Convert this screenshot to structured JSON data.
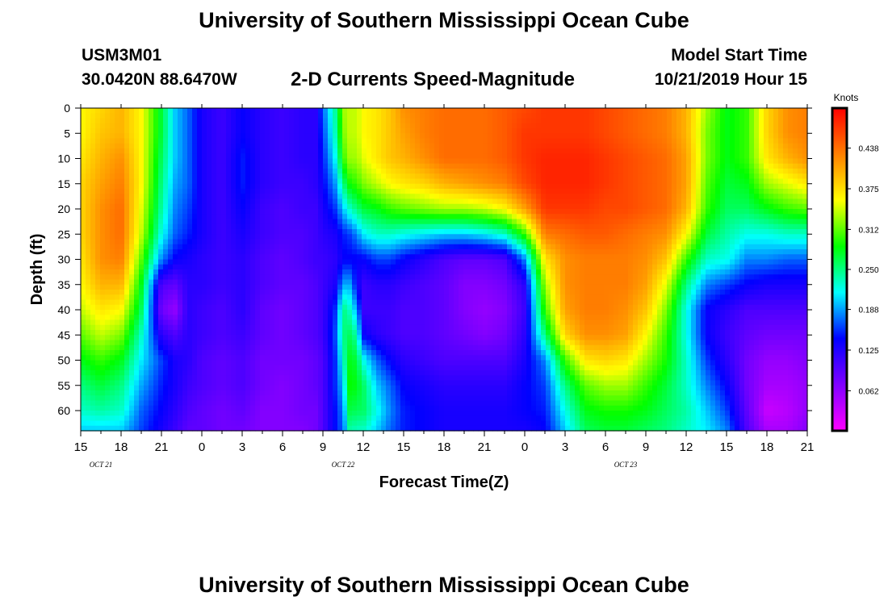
{
  "header": {
    "title": "University of Southern Mississippi Ocean Cube",
    "station": "USM3M01",
    "coords": "30.0420N 88.6470W",
    "product": "2-D Currents Speed-Magnitude",
    "model_start_label": "Model Start Time",
    "model_start_value": "10/21/2019 Hour 15"
  },
  "footer": {
    "title": "University of Southern Mississippi Ocean Cube"
  },
  "chart_data": {
    "type": "heatmap",
    "title": "2-D Currents Speed-Magnitude",
    "xlabel": "Forecast Time(Z)",
    "ylabel": "Depth (ft)",
    "x_tick_labels": [
      "15",
      "18",
      "21",
      "0",
      "3",
      "6",
      "9",
      "12",
      "15",
      "18",
      "21",
      "0",
      "3",
      "6",
      "9",
      "12",
      "15",
      "18",
      "21"
    ],
    "x_date_labels": [
      {
        "text": "OCT 21",
        "tick_index": 1
      },
      {
        "text": "OCT 22",
        "tick_index": 7
      },
      {
        "text": "OCT 23",
        "tick_index": 14
      }
    ],
    "y_ticks": [
      0,
      5,
      10,
      15,
      20,
      25,
      30,
      35,
      40,
      45,
      50,
      55,
      60
    ],
    "ylim": [
      0,
      64
    ],
    "y_inverted": true,
    "colorbar": {
      "label": "Knots",
      "ticks": [
        "0.062",
        "0.125",
        "0.188",
        "0.250",
        "0.312",
        "0.375",
        "0.438"
      ],
      "range": [
        0.0,
        0.5
      ],
      "colors": [
        "#ff00ff",
        "#8000ff",
        "#0000ff",
        "#00ffff",
        "#00ff00",
        "#ffff00",
        "#ff8000",
        "#ff0000"
      ]
    },
    "x_hours": [
      0,
      3,
      6,
      9,
      12,
      15,
      18,
      21,
      24,
      27,
      30,
      33,
      36,
      39,
      42,
      45,
      48,
      51,
      54
    ],
    "grid_x_hours": [
      0,
      1.5,
      3,
      4.5,
      6,
      7,
      8,
      9,
      10.5,
      12,
      13.5,
      15,
      16.5,
      17.5,
      18,
      19,
      19.5,
      20,
      20.5,
      21,
      22,
      23,
      24,
      25.5,
      27,
      28.5,
      30,
      31.5,
      33,
      34.5,
      36,
      37.5,
      39,
      40.5,
      42,
      43.5,
      45,
      46.5,
      48,
      49.5,
      51,
      52.5,
      54
    ],
    "grid_depths": [
      0,
      5,
      10,
      15,
      20,
      25,
      30,
      35,
      40,
      45,
      50,
      55,
      60,
      64
    ],
    "values": [
      [
        0.36,
        0.36,
        0.37,
        0.38,
        0.38,
        0.38,
        0.37,
        0.36,
        0.34,
        0.31,
        0.28,
        0.25,
        0.23,
        0.2
      ],
      [
        0.38,
        0.39,
        0.4,
        0.41,
        0.42,
        0.42,
        0.42,
        0.4,
        0.37,
        0.34,
        0.3,
        0.27,
        0.24,
        0.2
      ],
      [
        0.4,
        0.4,
        0.42,
        0.43,
        0.44,
        0.44,
        0.43,
        0.4,
        0.36,
        0.32,
        0.28,
        0.25,
        0.23,
        0.2
      ],
      [
        0.36,
        0.36,
        0.36,
        0.36,
        0.35,
        0.34,
        0.31,
        0.28,
        0.26,
        0.23,
        0.21,
        0.19,
        0.17,
        0.16
      ],
      [
        0.27,
        0.27,
        0.26,
        0.25,
        0.24,
        0.22,
        0.18,
        0.1,
        0.08,
        0.12,
        0.16,
        0.15,
        0.14,
        0.13
      ],
      [
        0.2,
        0.2,
        0.2,
        0.19,
        0.18,
        0.17,
        0.14,
        0.09,
        0.06,
        0.1,
        0.13,
        0.13,
        0.12,
        0.11
      ],
      [
        0.17,
        0.17,
        0.17,
        0.17,
        0.16,
        0.15,
        0.13,
        0.12,
        0.12,
        0.12,
        0.12,
        0.11,
        0.1,
        0.09
      ],
      [
        0.13,
        0.13,
        0.13,
        0.13,
        0.13,
        0.13,
        0.12,
        0.12,
        0.11,
        0.11,
        0.1,
        0.1,
        0.09,
        0.09
      ],
      [
        0.11,
        0.11,
        0.11,
        0.11,
        0.11,
        0.11,
        0.11,
        0.11,
        0.1,
        0.1,
        0.09,
        0.09,
        0.08,
        0.08
      ],
      [
        0.14,
        0.14,
        0.15,
        0.15,
        0.14,
        0.13,
        0.12,
        0.12,
        0.12,
        0.11,
        0.1,
        0.1,
        0.09,
        0.08
      ],
      [
        0.12,
        0.12,
        0.12,
        0.12,
        0.11,
        0.11,
        0.1,
        0.1,
        0.09,
        0.09,
        0.08,
        0.08,
        0.07,
        0.07
      ],
      [
        0.11,
        0.11,
        0.11,
        0.11,
        0.1,
        0.1,
        0.09,
        0.09,
        0.08,
        0.08,
        0.08,
        0.07,
        0.07,
        0.07
      ],
      [
        0.12,
        0.12,
        0.12,
        0.11,
        0.11,
        0.1,
        0.1,
        0.09,
        0.09,
        0.09,
        0.08,
        0.08,
        0.08,
        0.07
      ],
      [
        0.12,
        0.12,
        0.12,
        0.12,
        0.11,
        0.11,
        0.11,
        0.1,
        0.1,
        0.1,
        0.09,
        0.09,
        0.08,
        0.08
      ],
      [
        0.17,
        0.16,
        0.15,
        0.14,
        0.13,
        0.12,
        0.11,
        0.11,
        0.11,
        0.11,
        0.1,
        0.1,
        0.1,
        0.1
      ],
      [
        0.25,
        0.24,
        0.22,
        0.19,
        0.16,
        0.13,
        0.12,
        0.13,
        0.16,
        0.17,
        0.16,
        0.16,
        0.15,
        0.15
      ],
      [
        0.33,
        0.32,
        0.3,
        0.25,
        0.2,
        0.15,
        0.14,
        0.19,
        0.25,
        0.25,
        0.23,
        0.2,
        0.18,
        0.17
      ],
      [
        0.34,
        0.34,
        0.33,
        0.29,
        0.23,
        0.16,
        0.14,
        0.19,
        0.23,
        0.26,
        0.28,
        0.29,
        0.27,
        0.24
      ],
      [
        0.34,
        0.34,
        0.33,
        0.3,
        0.25,
        0.18,
        0.14,
        0.14,
        0.19,
        0.24,
        0.27,
        0.28,
        0.26,
        0.23
      ],
      [
        0.36,
        0.36,
        0.35,
        0.32,
        0.27,
        0.21,
        0.14,
        0.11,
        0.11,
        0.14,
        0.22,
        0.26,
        0.26,
        0.23
      ],
      [
        0.37,
        0.37,
        0.37,
        0.34,
        0.28,
        0.23,
        0.16,
        0.12,
        0.11,
        0.12,
        0.17,
        0.2,
        0.22,
        0.2
      ],
      [
        0.39,
        0.39,
        0.39,
        0.36,
        0.3,
        0.23,
        0.16,
        0.12,
        0.11,
        0.11,
        0.14,
        0.17,
        0.18,
        0.17
      ],
      [
        0.42,
        0.41,
        0.4,
        0.37,
        0.31,
        0.22,
        0.14,
        0.11,
        0.1,
        0.1,
        0.12,
        0.14,
        0.15,
        0.15
      ],
      [
        0.43,
        0.43,
        0.42,
        0.38,
        0.32,
        0.21,
        0.12,
        0.1,
        0.1,
        0.1,
        0.11,
        0.13,
        0.14,
        0.14
      ],
      [
        0.44,
        0.44,
        0.44,
        0.4,
        0.33,
        0.2,
        0.1,
        0.09,
        0.09,
        0.09,
        0.1,
        0.12,
        0.13,
        0.13
      ],
      [
        0.44,
        0.44,
        0.44,
        0.41,
        0.33,
        0.2,
        0.09,
        0.07,
        0.07,
        0.08,
        0.1,
        0.12,
        0.13,
        0.13
      ],
      [
        0.44,
        0.44,
        0.44,
        0.42,
        0.34,
        0.21,
        0.09,
        0.07,
        0.06,
        0.07,
        0.1,
        0.12,
        0.13,
        0.13
      ],
      [
        0.45,
        0.45,
        0.45,
        0.43,
        0.36,
        0.23,
        0.1,
        0.08,
        0.07,
        0.08,
        0.1,
        0.12,
        0.13,
        0.13
      ],
      [
        0.46,
        0.47,
        0.47,
        0.46,
        0.41,
        0.3,
        0.18,
        0.12,
        0.11,
        0.12,
        0.13,
        0.14,
        0.14,
        0.13
      ],
      [
        0.47,
        0.47,
        0.48,
        0.48,
        0.47,
        0.43,
        0.37,
        0.33,
        0.3,
        0.25,
        0.18,
        0.16,
        0.15,
        0.14
      ],
      [
        0.47,
        0.47,
        0.48,
        0.48,
        0.47,
        0.44,
        0.42,
        0.42,
        0.41,
        0.38,
        0.3,
        0.25,
        0.22,
        0.2
      ],
      [
        0.47,
        0.47,
        0.48,
        0.48,
        0.47,
        0.45,
        0.43,
        0.43,
        0.43,
        0.42,
        0.37,
        0.31,
        0.28,
        0.26
      ],
      [
        0.46,
        0.46,
        0.47,
        0.47,
        0.46,
        0.45,
        0.43,
        0.43,
        0.43,
        0.42,
        0.38,
        0.33,
        0.29,
        0.27
      ],
      [
        0.45,
        0.45,
        0.46,
        0.46,
        0.46,
        0.44,
        0.43,
        0.43,
        0.42,
        0.41,
        0.37,
        0.33,
        0.29,
        0.27
      ],
      [
        0.44,
        0.44,
        0.45,
        0.45,
        0.45,
        0.43,
        0.42,
        0.41,
        0.39,
        0.36,
        0.33,
        0.3,
        0.28,
        0.26
      ],
      [
        0.43,
        0.43,
        0.44,
        0.44,
        0.44,
        0.42,
        0.39,
        0.35,
        0.32,
        0.3,
        0.29,
        0.27,
        0.26,
        0.25
      ],
      [
        0.4,
        0.4,
        0.41,
        0.41,
        0.4,
        0.36,
        0.3,
        0.25,
        0.22,
        0.22,
        0.23,
        0.23,
        0.24,
        0.23
      ],
      [
        0.33,
        0.32,
        0.32,
        0.31,
        0.3,
        0.27,
        0.23,
        0.18,
        0.14,
        0.14,
        0.16,
        0.18,
        0.2,
        0.21
      ],
      [
        0.28,
        0.28,
        0.28,
        0.27,
        0.26,
        0.24,
        0.22,
        0.16,
        0.12,
        0.11,
        0.12,
        0.14,
        0.16,
        0.18
      ],
      [
        0.3,
        0.3,
        0.3,
        0.28,
        0.26,
        0.22,
        0.18,
        0.14,
        0.1,
        0.09,
        0.08,
        0.08,
        0.09,
        0.1
      ],
      [
        0.38,
        0.38,
        0.37,
        0.33,
        0.28,
        0.22,
        0.18,
        0.13,
        0.1,
        0.08,
        0.06,
        0.05,
        0.03,
        0.05
      ],
      [
        0.42,
        0.42,
        0.4,
        0.35,
        0.3,
        0.23,
        0.17,
        0.13,
        0.1,
        0.08,
        0.06,
        0.05,
        0.04,
        0.05
      ],
      [
        0.43,
        0.43,
        0.42,
        0.37,
        0.31,
        0.23,
        0.17,
        0.13,
        0.1,
        0.08,
        0.07,
        0.06,
        0.06,
        0.07
      ]
    ]
  }
}
